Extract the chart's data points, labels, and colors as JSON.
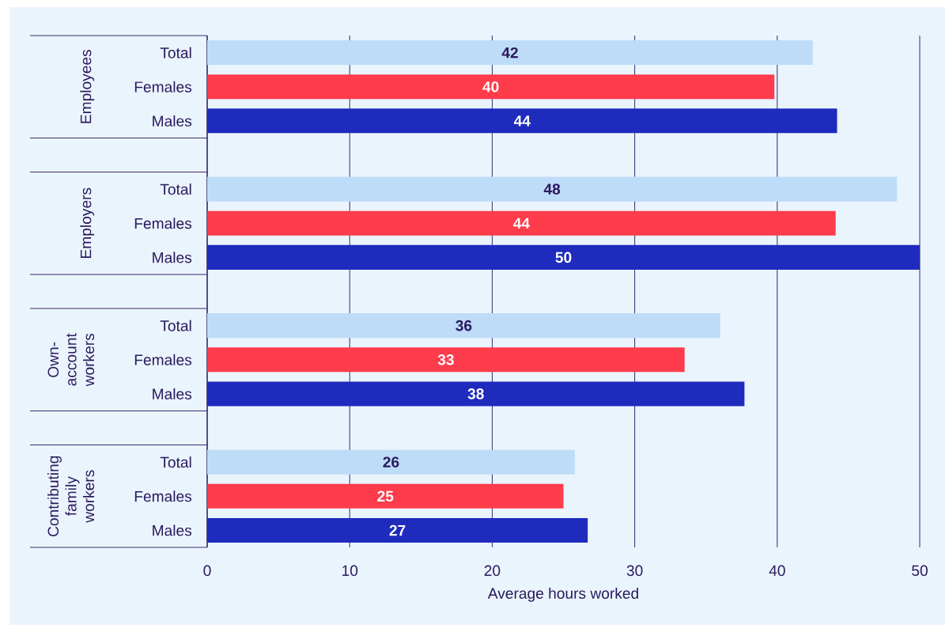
{
  "chart_data": {
    "type": "bar",
    "orientation": "horizontal",
    "categories": [
      "Total",
      "Females",
      "Males",
      null,
      "Total",
      "Females",
      "Males",
      null,
      "Total",
      "Females",
      "Males",
      null,
      "Total",
      "Females",
      "Males"
    ],
    "values": [
      42.5,
      39.8,
      44.2,
      null,
      48.4,
      44.1,
      50.0,
      null,
      36.0,
      33.5,
      37.7,
      null,
      25.8,
      25.0,
      26.7
    ],
    "colors": [
      "#bedcf8",
      "#fe3c4c",
      "#1e2bbd",
      null,
      "#bedcf8",
      "#fe3c4c",
      "#1e2bbd",
      null,
      "#bedcf8",
      "#fe3c4c",
      "#1e2bbd",
      null,
      "#bedcf8",
      "#fe3c4c",
      "#1e2bbd"
    ],
    "value_labels": [
      "42",
      "40",
      "44",
      null,
      "48",
      "44",
      "50",
      null,
      "36",
      "33",
      "38",
      null,
      "26",
      "25",
      "27"
    ],
    "annotations": [
      "Employees",
      "Employers",
      "Own-account workers",
      "Contributing family workers"
    ],
    "xlabel": "Average hours worked",
    "xlim": [
      0,
      50
    ],
    "xticks": [
      0,
      10,
      20,
      30,
      40,
      50
    ],
    "grid": "x"
  }
}
